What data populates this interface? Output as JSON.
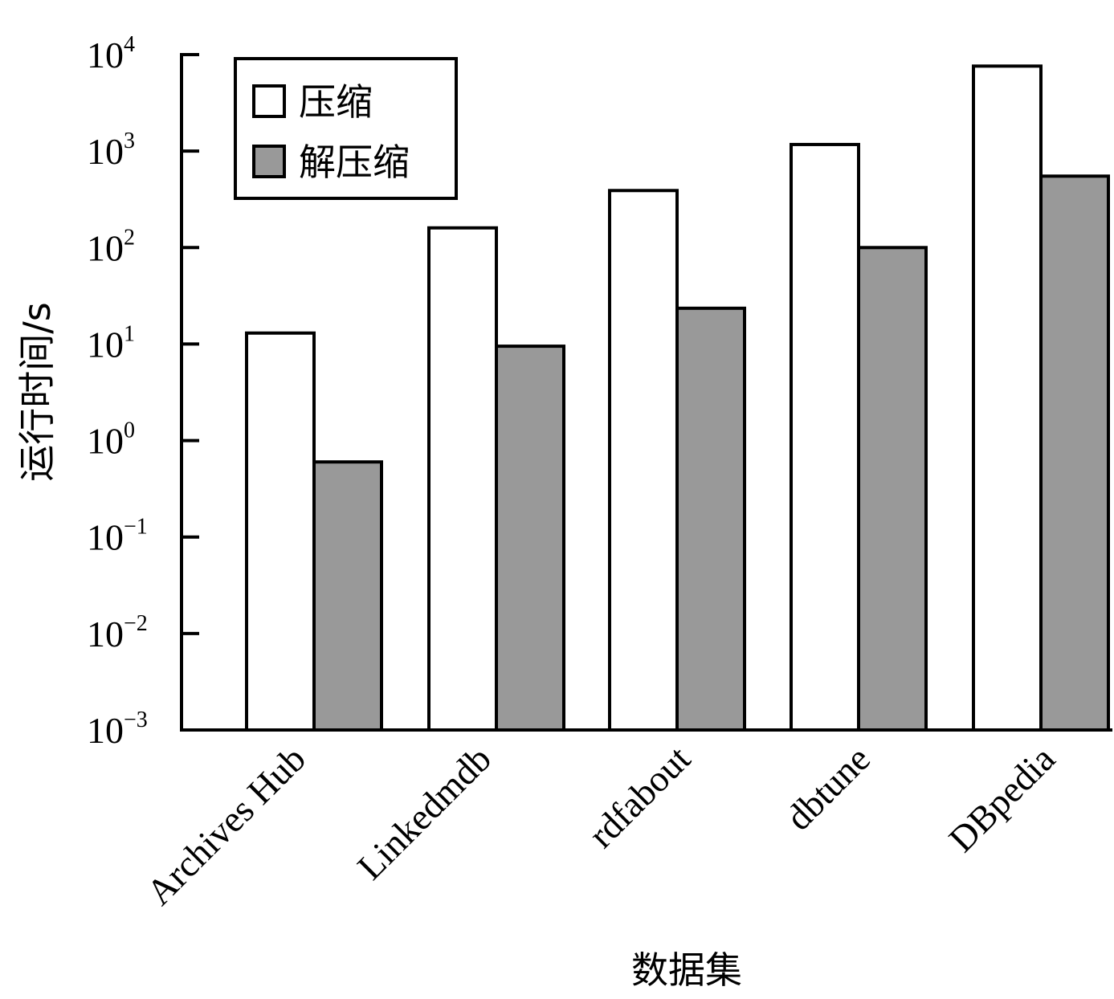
{
  "chart_data": {
    "type": "bar",
    "title": "",
    "xlabel": "数据集",
    "ylabel": "运行时间/s",
    "yscale": "log",
    "ylim": [
      0.001,
      10000
    ],
    "yticks": [
      {
        "base": "10",
        "exp": "4"
      },
      {
        "base": "10",
        "exp": "3"
      },
      {
        "base": "10",
        "exp": "2"
      },
      {
        "base": "10",
        "exp": "1"
      },
      {
        "base": "10",
        "exp": "0"
      },
      {
        "base": "10",
        "exp": "−1"
      },
      {
        "base": "10",
        "exp": "−2"
      },
      {
        "base": "10",
        "exp": "−3"
      }
    ],
    "categories": [
      "Archives Hub",
      "Linkedmdb",
      "rdfabout",
      "dbtune",
      "DBpedia"
    ],
    "series": [
      {
        "name": "压缩",
        "color": "#ffffff",
        "values": [
          13,
          160,
          390,
          1170,
          7600
        ]
      },
      {
        "name": "解压缩",
        "color": "#999999",
        "values": [
          0.6,
          9.5,
          23.5,
          100,
          550
        ]
      }
    ],
    "legend": {
      "position": "top-left",
      "items": [
        "压缩",
        "解压缩"
      ]
    },
    "grid": false
  }
}
